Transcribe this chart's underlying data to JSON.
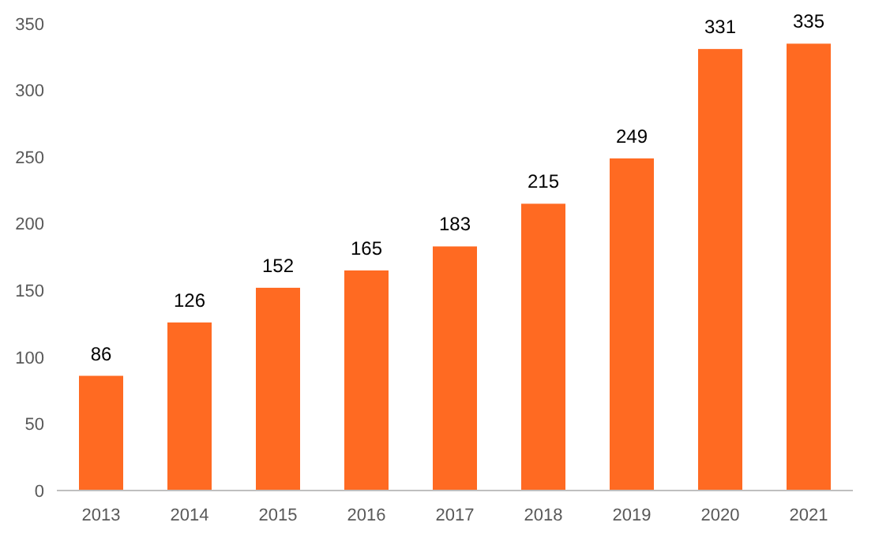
{
  "chart_data": {
    "type": "bar",
    "categories": [
      "2013",
      "2014",
      "2015",
      "2016",
      "2017",
      "2018",
      "2019",
      "2020",
      "2021"
    ],
    "values": [
      86,
      126,
      152,
      165,
      183,
      215,
      249,
      331,
      335
    ],
    "color": "#ff6a22",
    "ylim": [
      0,
      350
    ],
    "yticks": [
      0,
      50,
      100,
      150,
      200,
      250,
      300,
      350
    ],
    "grid": false,
    "data_labels": true
  }
}
